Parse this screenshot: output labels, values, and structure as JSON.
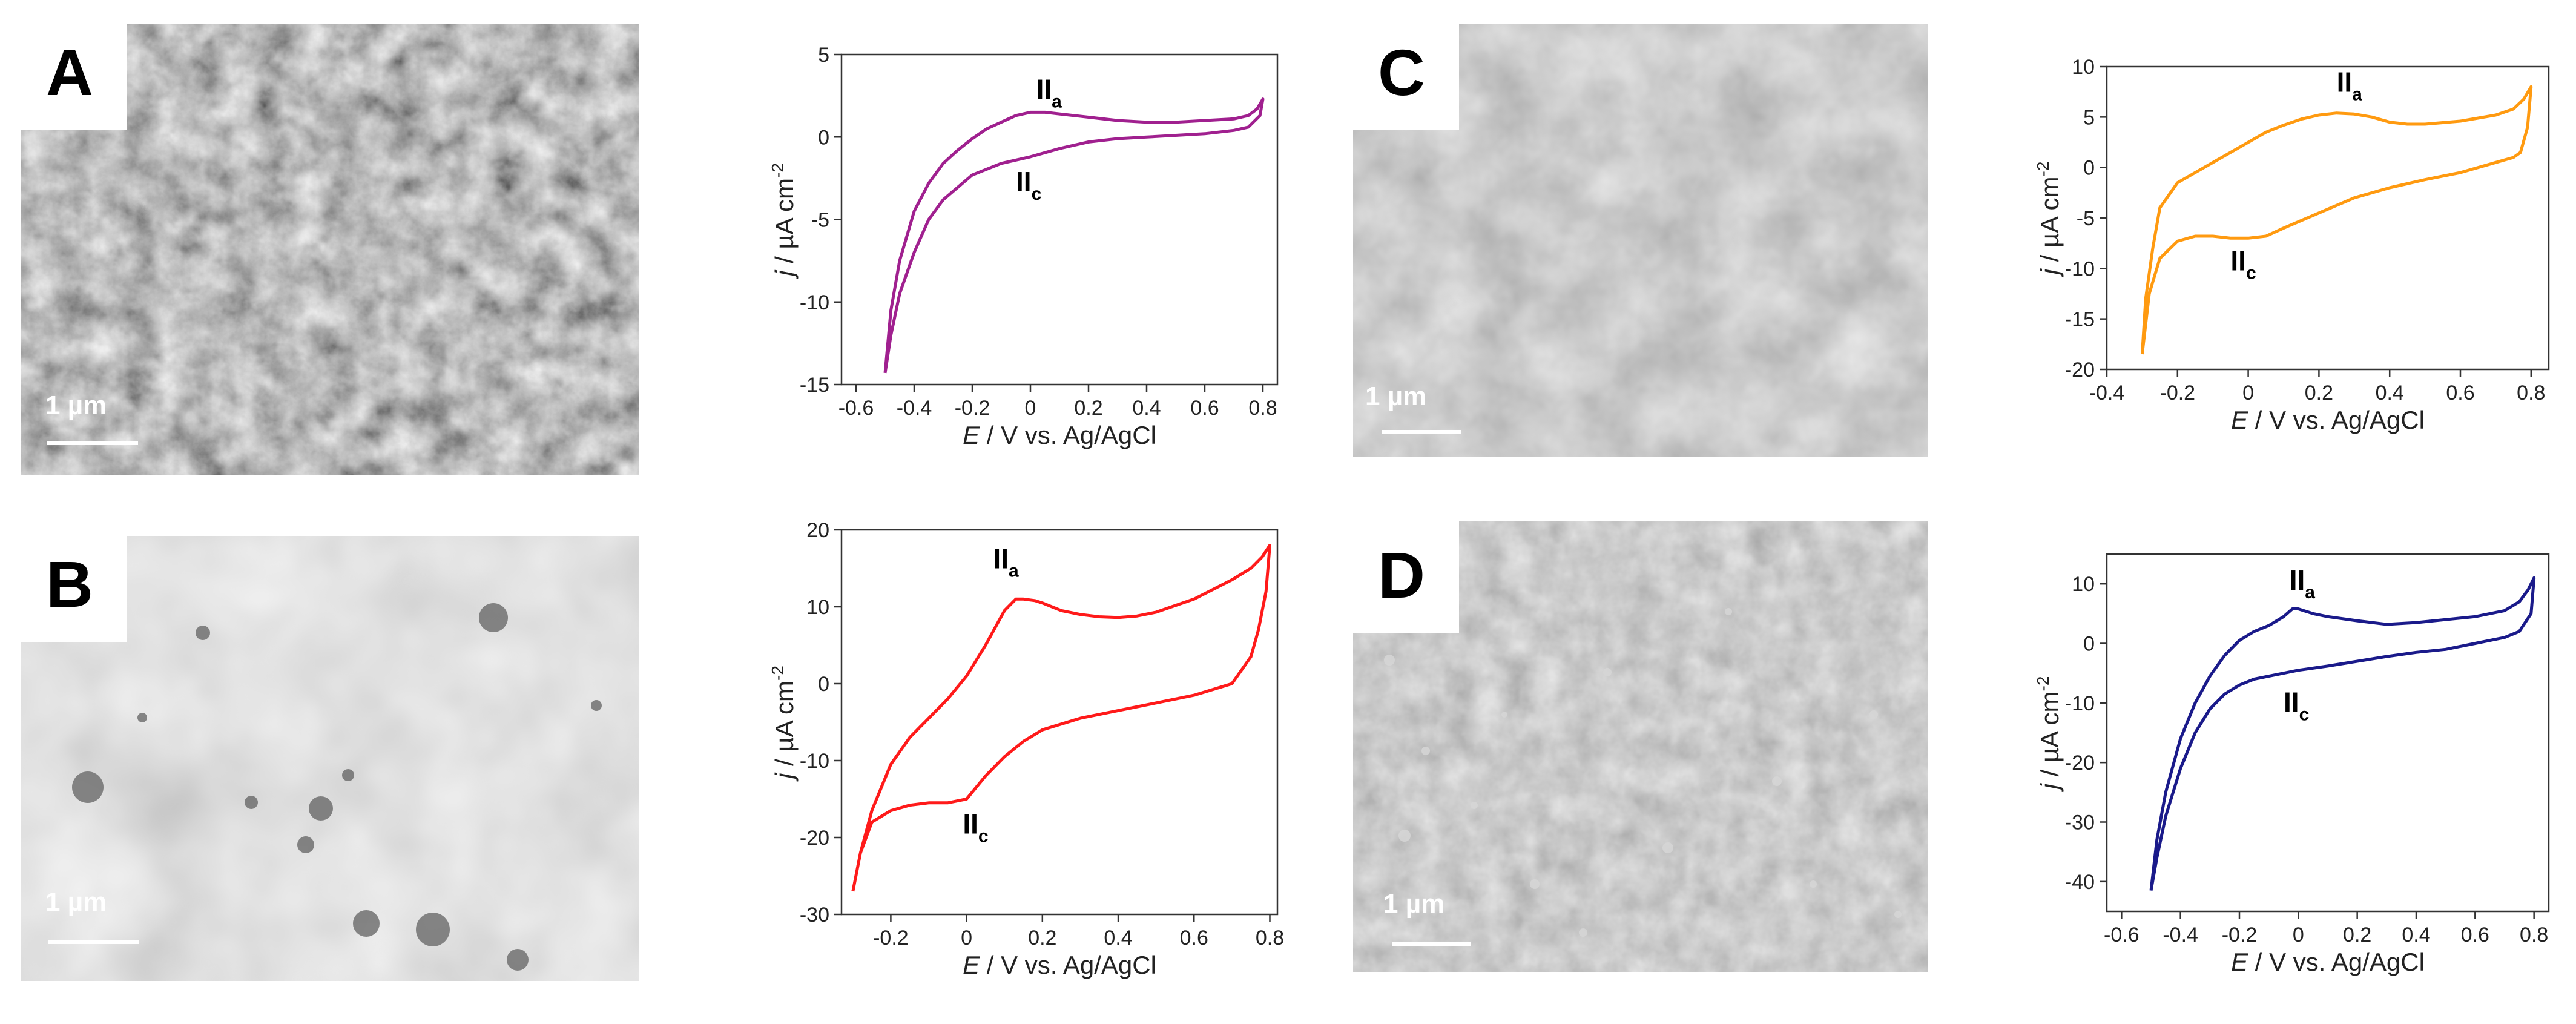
{
  "panels": [
    {
      "letter": "A",
      "scale_text": "1 µm"
    },
    {
      "letter": "B",
      "scale_text": "1 µm"
    },
    {
      "letter": "C",
      "scale_text": "1 µm"
    },
    {
      "letter": "D",
      "scale_text": "1 µm"
    }
  ],
  "colors": {
    "A": "#a0208f",
    "B": "#ff1a1a",
    "C": "#ff9a10",
    "D": "#1a1a8a"
  },
  "chart_data": [
    {
      "panel": "A",
      "type": "line",
      "xlabel_italic": "E",
      "xlabel_rest": " / V vs. Ag/AgCl",
      "ylabel_italic": "j",
      "ylabel_rest": " / µA cm",
      "ylabel_sup": "-2",
      "xlim": [
        -0.65,
        0.85
      ],
      "ylim": [
        -15,
        5
      ],
      "xticks": [
        -0.6,
        -0.4,
        -0.2,
        0.0,
        0.2,
        0.4,
        0.6,
        0.8
      ],
      "yticks": [
        5,
        0,
        -5,
        -10,
        -15
      ],
      "peaks": [
        {
          "main": "II",
          "sub": "a",
          "x": 0.02,
          "y": 2.3
        },
        {
          "main": "II",
          "sub": "c",
          "x": -0.05,
          "y": -3.3
        }
      ],
      "series": [
        {
          "x": [
            -0.5,
            -0.48,
            -0.45,
            -0.4,
            -0.35,
            -0.3,
            -0.25,
            -0.2,
            -0.15,
            -0.1,
            -0.05,
            0.0,
            0.05,
            0.1,
            0.2,
            0.3,
            0.4,
            0.5,
            0.6,
            0.7,
            0.75,
            0.78,
            0.8,
            0.79,
            0.75,
            0.7,
            0.6,
            0.5,
            0.4,
            0.3,
            0.2,
            0.1,
            0.0,
            -0.1,
            -0.2,
            -0.3,
            -0.35,
            -0.4,
            -0.45,
            -0.48,
            -0.5
          ],
          "y": [
            -14.3,
            -10.5,
            -7.5,
            -4.5,
            -2.8,
            -1.6,
            -0.8,
            -0.1,
            0.5,
            0.9,
            1.3,
            1.5,
            1.5,
            1.4,
            1.2,
            1.0,
            0.9,
            0.9,
            1.0,
            1.1,
            1.3,
            1.7,
            2.3,
            1.3,
            0.6,
            0.4,
            0.2,
            0.1,
            0.0,
            -0.1,
            -0.3,
            -0.7,
            -1.2,
            -1.6,
            -2.3,
            -3.8,
            -5.0,
            -7.0,
            -9.5,
            -12.0,
            -14.3
          ]
        }
      ]
    },
    {
      "panel": "B",
      "type": "line",
      "xlabel_italic": "E",
      "xlabel_rest": " / V vs. Ag/AgCl",
      "ylabel_italic": "j",
      "ylabel_rest": " / µA cm",
      "ylabel_sup": "-2",
      "xlim": [
        -0.33,
        0.82
      ],
      "ylim": [
        -30,
        20
      ],
      "xticks": [
        -0.2,
        0.0,
        0.2,
        0.4,
        0.6,
        0.8
      ],
      "yticks": [
        20,
        10,
        0,
        -10,
        -20,
        -30
      ],
      "peaks": [
        {
          "main": "II",
          "sub": "a",
          "x": 0.07,
          "y": 15.0
        },
        {
          "main": "II",
          "sub": "c",
          "x": -0.01,
          "y": -19.5
        }
      ],
      "series": [
        {
          "x": [
            -0.3,
            -0.28,
            -0.25,
            -0.2,
            -0.15,
            -0.1,
            -0.05,
            0.0,
            0.05,
            0.1,
            0.13,
            0.15,
            0.18,
            0.2,
            0.25,
            0.3,
            0.35,
            0.4,
            0.45,
            0.5,
            0.6,
            0.7,
            0.75,
            0.78,
            0.8,
            0.79,
            0.77,
            0.75,
            0.7,
            0.6,
            0.5,
            0.4,
            0.3,
            0.2,
            0.15,
            0.1,
            0.05,
            0.0,
            -0.05,
            -0.1,
            -0.15,
            -0.2,
            -0.25,
            -0.28,
            -0.3
          ],
          "y": [
            -27.0,
            -22.0,
            -16.5,
            -10.5,
            -7.0,
            -4.5,
            -2.0,
            1.0,
            5.0,
            9.5,
            11.0,
            11.0,
            10.8,
            10.5,
            9.5,
            9.0,
            8.7,
            8.6,
            8.8,
            9.3,
            11.0,
            13.5,
            15.0,
            16.5,
            18.0,
            12.0,
            7.0,
            3.5,
            0.0,
            -1.5,
            -2.5,
            -3.5,
            -4.5,
            -6.0,
            -7.5,
            -9.5,
            -12.0,
            -15.0,
            -15.5,
            -15.5,
            -15.8,
            -16.5,
            -18.0,
            -22.0,
            -27.0
          ]
        }
      ]
    },
    {
      "panel": "C",
      "type": "line",
      "xlabel_italic": "E",
      "xlabel_rest": " / V vs. Ag/AgCl",
      "ylabel_italic": "j",
      "ylabel_rest": " / µA cm",
      "ylabel_sup": "-2",
      "xlim": [
        -0.4,
        0.85
      ],
      "ylim": [
        -20,
        10
      ],
      "xticks": [
        -0.4,
        -0.2,
        0.0,
        0.2,
        0.4,
        0.6,
        0.8
      ],
      "yticks": [
        10,
        5,
        0,
        -5,
        -10,
        -15,
        -20
      ],
      "peaks": [
        {
          "main": "II",
          "sub": "a",
          "x": 0.25,
          "y": 7.5
        },
        {
          "main": "II",
          "sub": "c",
          "x": -0.05,
          "y": -10.2
        }
      ],
      "series": [
        {
          "x": [
            -0.3,
            -0.29,
            -0.27,
            -0.25,
            -0.2,
            -0.15,
            -0.1,
            -0.05,
            0.0,
            0.05,
            0.1,
            0.15,
            0.2,
            0.25,
            0.3,
            0.35,
            0.4,
            0.45,
            0.5,
            0.6,
            0.7,
            0.75,
            0.78,
            0.8,
            0.79,
            0.77,
            0.75,
            0.7,
            0.6,
            0.5,
            0.4,
            0.3,
            0.2,
            0.1,
            0.05,
            0.0,
            -0.05,
            -0.1,
            -0.15,
            -0.2,
            -0.25,
            -0.28,
            -0.3
          ],
          "y": [
            -18.5,
            -13.0,
            -8.0,
            -4.0,
            -1.5,
            -0.5,
            0.5,
            1.5,
            2.5,
            3.5,
            4.2,
            4.8,
            5.2,
            5.4,
            5.3,
            5.0,
            4.5,
            4.3,
            4.3,
            4.6,
            5.2,
            5.8,
            6.8,
            8.0,
            4.0,
            1.5,
            1.0,
            0.5,
            -0.5,
            -1.2,
            -2.0,
            -3.0,
            -4.5,
            -6.0,
            -6.8,
            -7.0,
            -7.0,
            -6.8,
            -6.8,
            -7.3,
            -9.0,
            -12.5,
            -18.5
          ]
        }
      ]
    },
    {
      "panel": "D",
      "type": "line",
      "xlabel_italic": "E",
      "xlabel_rest": " / V vs. Ag/AgCl",
      "ylabel_italic": "j",
      "ylabel_rest": " / µA cm",
      "ylabel_sup": "-2",
      "xlim": [
        -0.65,
        0.85
      ],
      "ylim": [
        -45,
        15
      ],
      "xticks": [
        -0.6,
        -0.4,
        -0.2,
        0.0,
        0.2,
        0.4,
        0.6,
        0.8
      ],
      "yticks": [
        10,
        0,
        -10,
        -20,
        -30,
        -40
      ],
      "peaks": [
        {
          "main": "II",
          "sub": "a",
          "x": -0.03,
          "y": 9.0
        },
        {
          "main": "II",
          "sub": "c",
          "x": -0.05,
          "y": -11.5
        }
      ],
      "series": [
        {
          "x": [
            -0.5,
            -0.48,
            -0.45,
            -0.4,
            -0.35,
            -0.3,
            -0.25,
            -0.2,
            -0.15,
            -0.1,
            -0.05,
            -0.02,
            0.0,
            0.05,
            0.1,
            0.2,
            0.3,
            0.4,
            0.5,
            0.6,
            0.7,
            0.75,
            0.78,
            0.8,
            0.79,
            0.75,
            0.7,
            0.6,
            0.5,
            0.4,
            0.3,
            0.2,
            0.1,
            0.0,
            -0.05,
            -0.1,
            -0.15,
            -0.2,
            -0.25,
            -0.3,
            -0.35,
            -0.4,
            -0.45,
            -0.48,
            -0.5
          ],
          "y": [
            -41.5,
            -33.0,
            -25.0,
            -16.0,
            -10.0,
            -5.5,
            -2.0,
            0.5,
            2.0,
            3.0,
            4.5,
            5.8,
            5.8,
            5.0,
            4.5,
            3.8,
            3.2,
            3.5,
            4.0,
            4.5,
            5.5,
            7.0,
            9.0,
            11.0,
            5.0,
            2.0,
            1.0,
            0.0,
            -1.0,
            -1.5,
            -2.2,
            -3.0,
            -3.8,
            -4.5,
            -5.0,
            -5.5,
            -6.0,
            -7.0,
            -8.5,
            -11.0,
            -15.0,
            -21.0,
            -29.0,
            -36.0,
            -41.5
          ]
        }
      ]
    }
  ]
}
